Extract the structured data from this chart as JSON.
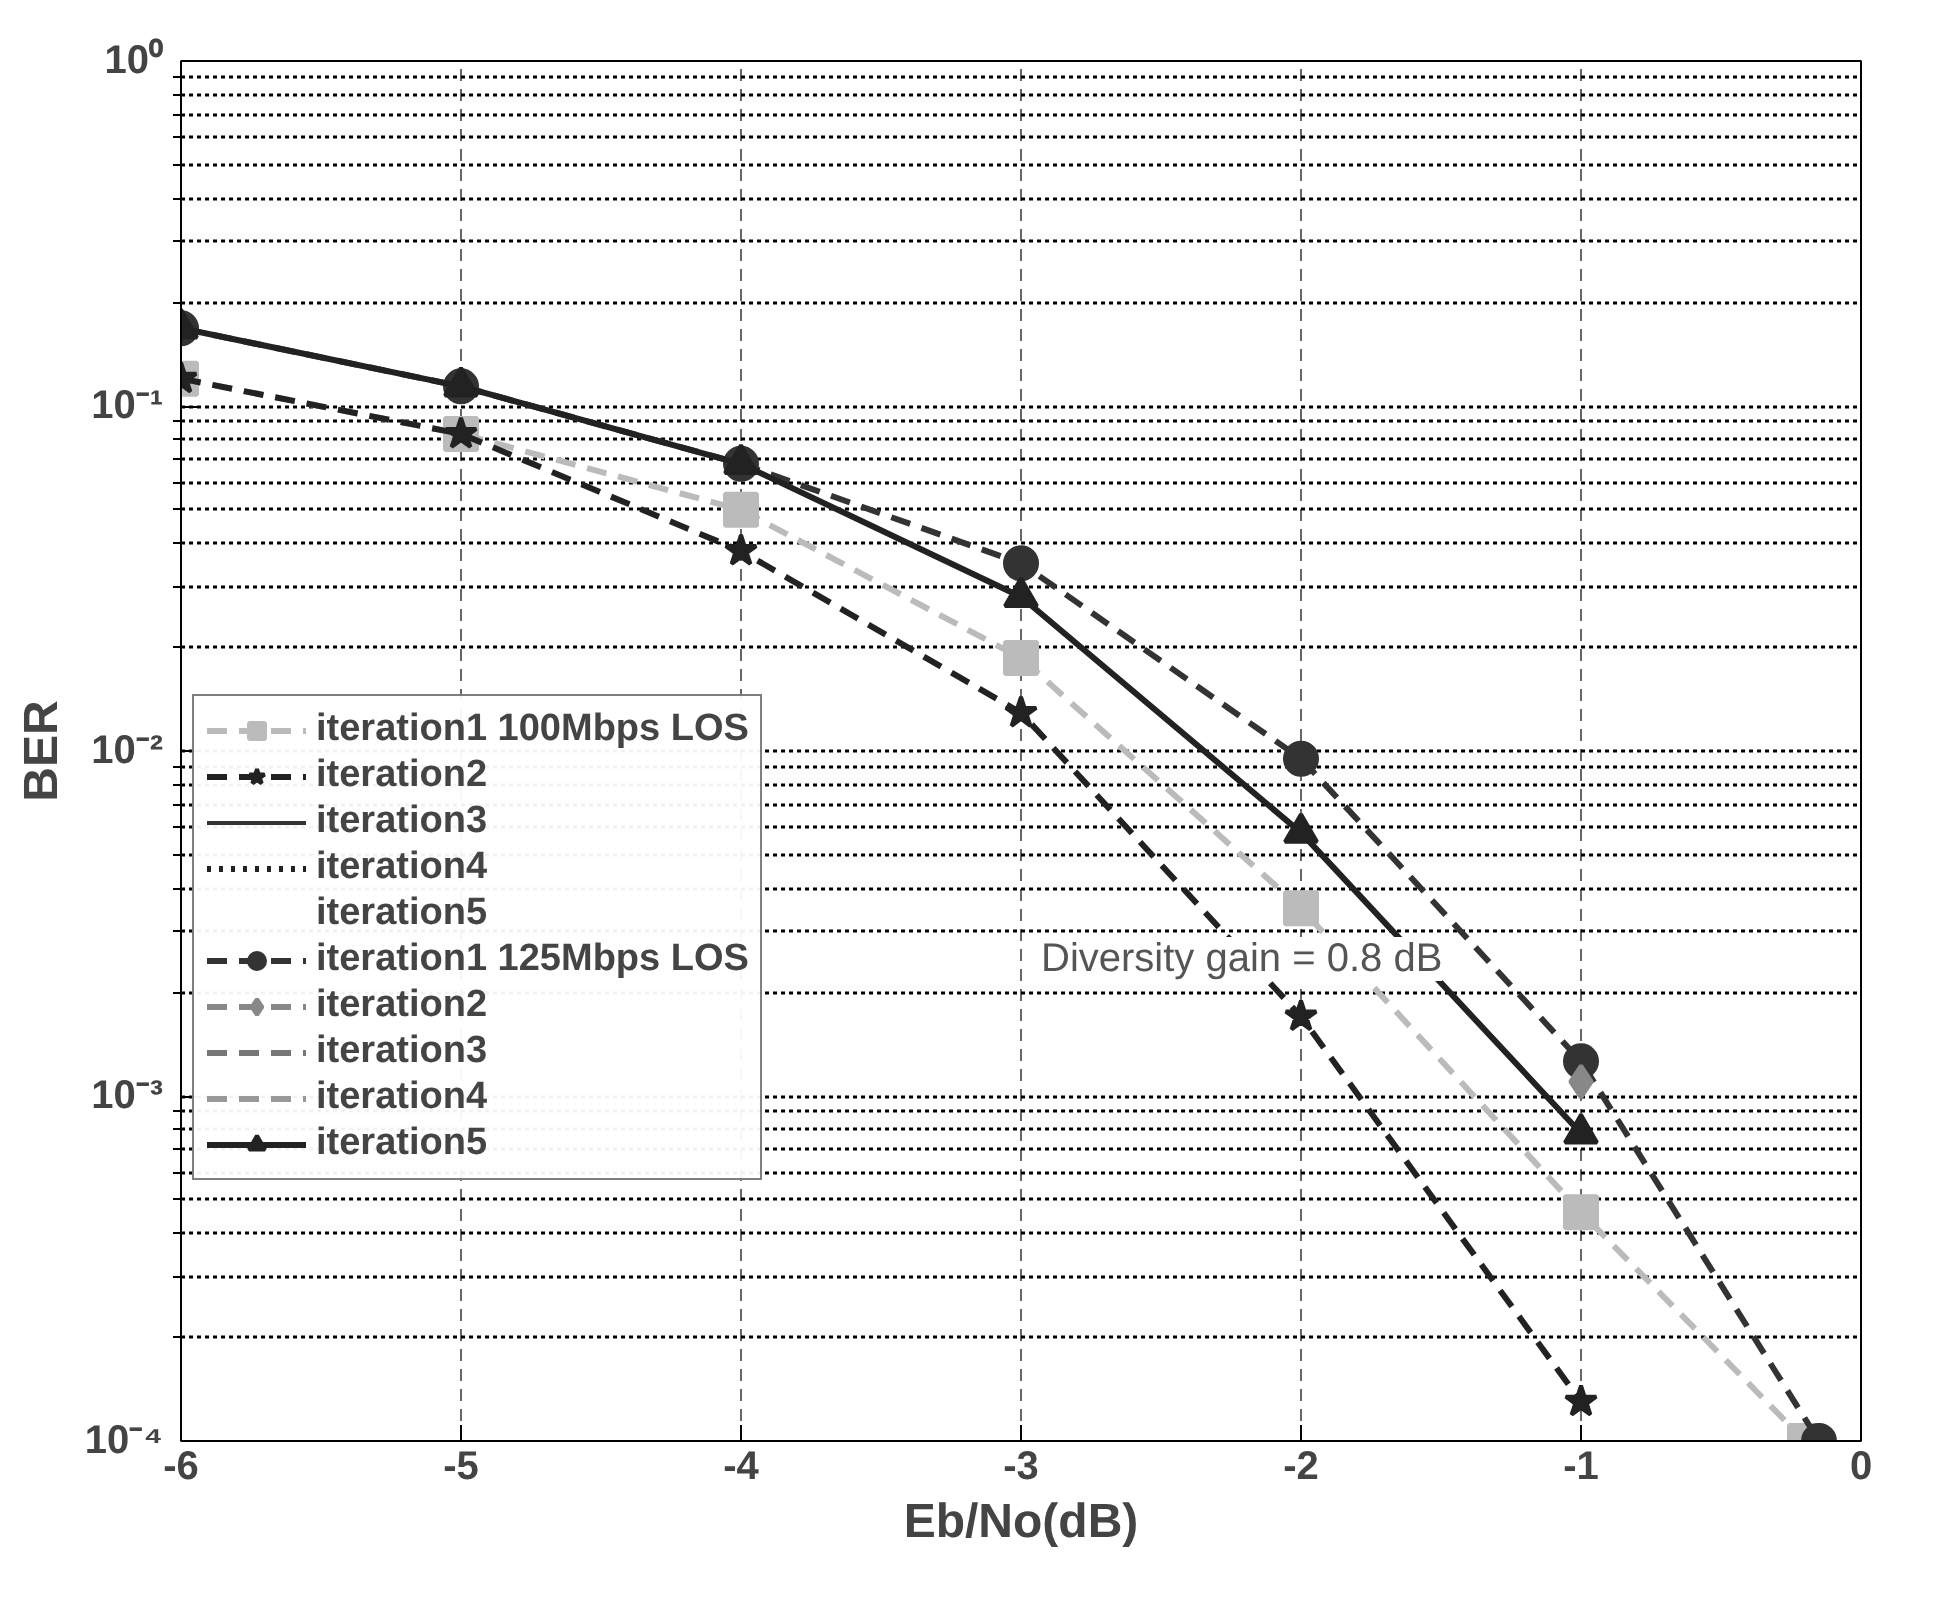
{
  "chart_data": {
    "type": "line",
    "xlabel": "Eb/No(dB)",
    "ylabel": "BER",
    "log": "y",
    "xlim": [
      -6,
      0
    ],
    "xticks": [
      -6,
      -5,
      -4,
      -3,
      -2,
      -1,
      0
    ],
    "ylim": [
      0.0001,
      1
    ],
    "yticks": [
      {
        "value": 0.0001,
        "label": "10⁻⁴"
      },
      {
        "value": 0.001,
        "label": "10⁻³"
      },
      {
        "value": 0.01,
        "label": "10⁻²"
      },
      {
        "value": 0.1,
        "label": "10⁻¹"
      },
      {
        "value": 1,
        "label": "10⁰"
      }
    ],
    "grid": true,
    "legend": "left",
    "x": [
      -6,
      -5,
      -4,
      -3,
      -2,
      -1
    ],
    "series": [
      {
        "name": "iteration1 100Mbps LOS",
        "color": "#bbbbbb",
        "marker": "square",
        "line_style": "dashed",
        "x": [
          -6,
          -5,
          -4,
          -3,
          -2,
          -1,
          -0.2
        ],
        "values": [
          0.12,
          0.083,
          0.05,
          0.0186,
          0.0035,
          0.00046,
          0.0001
        ]
      },
      {
        "name": "iteration2",
        "color": "#222222",
        "marker": "star",
        "line_style": "dashed",
        "values": [
          0.12,
          0.083,
          0.038,
          0.0129,
          0.0017,
          0.00013
        ]
      },
      {
        "name": "iteration3",
        "color": "#333333",
        "marker": "none",
        "line_style": "solid",
        "values": [
          null,
          null,
          null,
          null,
          null,
          null
        ]
      },
      {
        "name": "iteration4",
        "color": "#222222",
        "marker": "triangle",
        "line_style": "dotted",
        "values": [
          null,
          null,
          null,
          null,
          null,
          null
        ]
      },
      {
        "name": "iteration5",
        "color": "#222222",
        "marker": "star",
        "line_style": "none",
        "values": [
          null,
          null,
          null,
          null,
          null,
          null
        ]
      },
      {
        "name": "iteration1 125Mbps LOS",
        "color": "#333333",
        "marker": "circle",
        "line_style": "dashed",
        "x": [
          -6,
          -5,
          -4,
          -3,
          -2,
          -1,
          -0.15
        ],
        "values": [
          0.168,
          0.114,
          0.068,
          0.035,
          0.0095,
          0.00126,
          0.0001
        ]
      },
      {
        "name": "iteration2",
        "color": "#888888",
        "marker": "diamond",
        "line_style": "dashed",
        "values": [
          null,
          null,
          null,
          null,
          null,
          0.0011
        ]
      },
      {
        "name": "iteration3",
        "color": "#777777",
        "marker": "triangle",
        "line_style": "dashed",
        "values": [
          null,
          null,
          null,
          null,
          null,
          null
        ]
      },
      {
        "name": "iteration4",
        "color": "#999999",
        "marker": "triangle",
        "line_style": "dashed",
        "values": [
          null,
          null,
          null,
          null,
          null,
          null
        ]
      },
      {
        "name": "iteration5",
        "color": "#222222",
        "marker": "triangle",
        "line_style": "solid",
        "values": [
          0.168,
          0.114,
          0.068,
          0.028,
          0.0058,
          0.00078
        ]
      }
    ],
    "annotations": [
      "Diversity gain = 0.8 dB"
    ]
  }
}
